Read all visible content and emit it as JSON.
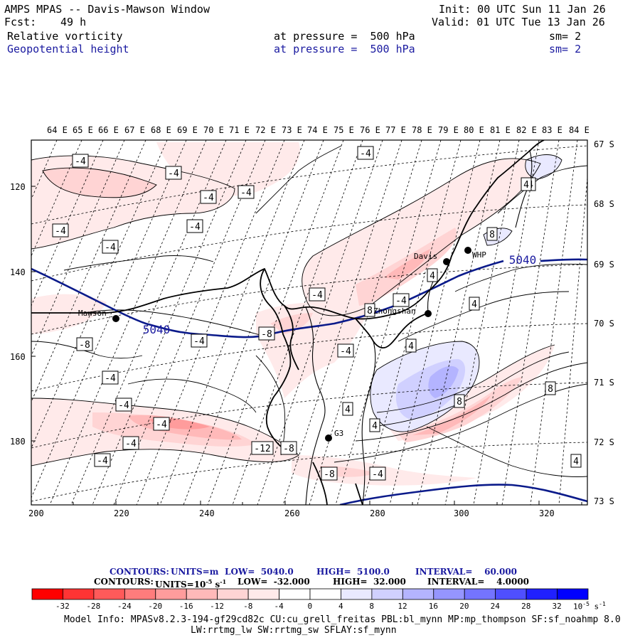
{
  "header": {
    "title": "AMPS MPAS -- Davis-Mawson Window",
    "fcst_label": "Fcst:",
    "fcst_value": "49 h",
    "init": "Init: 00 UTC Sun 11 Jan 26",
    "valid": "Valid: 01 UTC Tue 13 Jan 26",
    "field1_name": "Relative vorticity",
    "field1_level": "at pressure =  500 hPa",
    "field1_sm": "sm= 2",
    "field2_name": "Geopotential height",
    "field2_level": "at pressure =  500 hPa",
    "field2_sm": "sm= 2"
  },
  "map": {
    "top_lon_labels": [
      "64 E",
      "65 E",
      "66 E",
      "67 E",
      "68 E",
      "69 E",
      "70 E",
      "71 E",
      "72 E",
      "73 E",
      "74 E",
      "75 E",
      "76 E",
      "77 E",
      "78 E",
      "79 E",
      "80 E",
      "81 E",
      "82 E",
      "83 E",
      "84 E"
    ],
    "right_lat_labels": [
      "67 S",
      "68 S",
      "69 S",
      "70 S",
      "71 S",
      "72 S",
      "73 S"
    ],
    "x_axis_labels": [
      "200",
      "220",
      "240",
      "260",
      "280",
      "300",
      "320"
    ],
    "y_axis_labels": [
      "120",
      "140",
      "160",
      "180"
    ],
    "stations": [
      {
        "name": "Mawson"
      },
      {
        "name": "Davis"
      },
      {
        "name": "WHP"
      },
      {
        "name": "Zhongshan"
      },
      {
        "name": "G3"
      }
    ],
    "height_labels": [
      "5040",
      "5040"
    ],
    "vort_labels": [
      "-4",
      "-4",
      "-4",
      "-4",
      "-4",
      "-4",
      "-4",
      "-4",
      "-4",
      "-4",
      "-4",
      "-8",
      "-4",
      "-4",
      "-4",
      "-4",
      "-12",
      "-8",
      "-8",
      "-4",
      "-8",
      "-4",
      "-4",
      "4",
      "4",
      "4",
      "4",
      "4",
      "4",
      "8",
      "8",
      "4",
      "8",
      "8",
      "4",
      "4"
    ]
  },
  "contours_line1": {
    "label": "CONTOURS:",
    "units": "UNITS=m",
    "low": "LOW=  5040.0",
    "high": "HIGH=  5100.0",
    "interval": "INTERVAL=    60.000"
  },
  "contours_line2": {
    "label": "CONTOURS:",
    "units": "UNITS=10",
    "units_exp": "-5",
    "units_tail": "s",
    "units_tail_exp": "-1",
    "low": "LOW=  -32.000",
    "high": "HIGH=  32.000",
    "interval": "INTERVAL=    4.0000"
  },
  "colorbar": {
    "colors": [
      "#ff0000",
      "#ff3434",
      "#ff5a5a",
      "#ff7c7c",
      "#ff9c9c",
      "#ffb9b9",
      "#ffd4d4",
      "#ffeaea",
      "#ffffff",
      "#ffffff",
      "#e9e9ff",
      "#d0d0ff",
      "#b4b4ff",
      "#9595ff",
      "#7474ff",
      "#4f4fff",
      "#2020ff",
      "#0000ff"
    ],
    "tick_labels": [
      "-32",
      "-28",
      "-24",
      "-20",
      "-16",
      "-12",
      "-8",
      "-4",
      "0",
      "4",
      "8",
      "12",
      "16",
      "20",
      "24",
      "28",
      "32"
    ],
    "units": "10",
    "units_exp": "-5",
    "units_tail": "s",
    "units_tail_exp": "-1"
  },
  "footer": {
    "line1": "Model Info: MPASv8.2.3-194-gf29cd82c CU:cu_grell_freitas PBL:bl_mynn MP:mp_thompson SF:sf_noahmp 8.0",
    "line2": "LW:rrtmg_lw SW:rrtmg_sw SFLAY:sf_mynn"
  }
}
